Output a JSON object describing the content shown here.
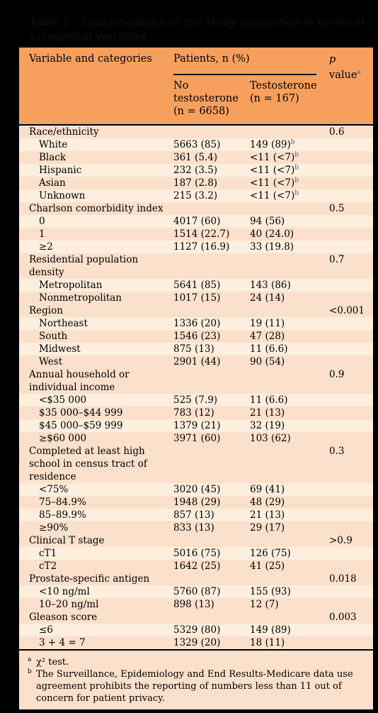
{
  "caption": "Table 2 – Characteristics of the study population in terms of categorical variables",
  "header": {
    "variable": "Variable and categories",
    "patients": "Patients, n (%)",
    "no_testosterone_1": "No",
    "no_testosterone_2": "testosterone",
    "no_testosterone_3": "(n = 6658)",
    "testosterone_1": "Testosterone",
    "testosterone_2": "(n = 167)",
    "p_1": "p",
    "p_2": "value",
    "p_mark": "a"
  },
  "rows": [
    {
      "label": "Race/ethnicity",
      "no": "",
      "yes": "",
      "p": "0.6",
      "sub": false,
      "sep": true,
      "lines": 1
    },
    {
      "label": "White",
      "no": "5663 (85)",
      "yes": "149 (89)",
      "mark": "b",
      "p": "",
      "sub": true,
      "lines": 1
    },
    {
      "label": "Black",
      "no": "361 (5.4)",
      "yes": "<11 (<7)",
      "mark": "b",
      "p": "",
      "sub": true,
      "lines": 1
    },
    {
      "label": "Hispanic",
      "no": "232 (3.5)",
      "yes": "<11 (<7)",
      "mark": "b",
      "p": "",
      "sub": true,
      "lines": 1
    },
    {
      "label": "Asian",
      "no": "187 (2.8)",
      "yes": "<11 (<7)",
      "mark": "b",
      "p": "",
      "sub": true,
      "lines": 1
    },
    {
      "label": "Unknown",
      "no": "215 (3.2)",
      "yes": "<11 (<7)",
      "mark": "b",
      "p": "",
      "sub": true,
      "lines": 1
    },
    {
      "label": "Charlson comorbidity index",
      "no": "",
      "yes": "",
      "p": "0.5",
      "sub": false,
      "lines": 1
    },
    {
      "label": "0",
      "no": "4017 (60)",
      "yes": "94 (56)",
      "p": "",
      "sub": true,
      "lines": 1
    },
    {
      "label": "1",
      "no": "1514 (22.7)",
      "yes": "40 (24.0)",
      "p": "",
      "sub": true,
      "lines": 1
    },
    {
      "label": "≥2",
      "no": "1127 (16.9)",
      "yes": "33 (19.8)",
      "p": "",
      "sub": true,
      "lines": 1
    },
    {
      "label": "Residential population density",
      "no": "",
      "yes": "",
      "p": "0.7",
      "sub": false,
      "lines": 2
    },
    {
      "label": "Metropolitan",
      "no": "5641 (85)",
      "yes": "143 (86)",
      "p": "",
      "sub": true,
      "lines": 1
    },
    {
      "label": "Nonmetropolitan",
      "no": "1017 (15)",
      "yes": "24 (14)",
      "p": "",
      "sub": true,
      "lines": 1
    },
    {
      "label": "Region",
      "no": "",
      "yes": "",
      "p": "<0.001",
      "sub": false,
      "lines": 1
    },
    {
      "label": "Northeast",
      "no": "1336 (20)",
      "yes": "19 (11)",
      "p": "",
      "sub": true,
      "lines": 1
    },
    {
      "label": "South",
      "no": "1546 (23)",
      "yes": "47 (28)",
      "p": "",
      "sub": true,
      "lines": 1
    },
    {
      "label": "Midwest",
      "no": "875 (13)",
      "yes": "11 (6.6)",
      "p": "",
      "sub": true,
      "lines": 1
    },
    {
      "label": "West",
      "no": "2901 (44)",
      "yes": "90 (54)",
      "p": "",
      "sub": true,
      "lines": 1
    },
    {
      "label": "Annual household or individual income",
      "no": "",
      "yes": "",
      "p": "0.9",
      "sub": false,
      "lines": 2
    },
    {
      "label": "<$35 000",
      "no": "525 (7.9)",
      "yes": "11 (6.6)",
      "p": "",
      "sub": true,
      "lines": 1
    },
    {
      "label": "$35 000–$44 999",
      "no": "783 (12)",
      "yes": "21 (13)",
      "p": "",
      "sub": true,
      "lines": 1
    },
    {
      "label": "$45 000–$59 999",
      "no": "1379 (21)",
      "yes": "32 (19)",
      "p": "",
      "sub": true,
      "lines": 1
    },
    {
      "label": "≥$60 000",
      "no": "3971 (60)",
      "yes": "103 (62)",
      "p": "",
      "sub": true,
      "lines": 1
    },
    {
      "label": "Completed at least high school in census tract of residence",
      "no": "",
      "yes": "",
      "p": "0.3",
      "sub": false,
      "lines": 3
    },
    {
      "label": "<75%",
      "no": "3020 (45)",
      "yes": "69 (41)",
      "p": "",
      "sub": true,
      "lines": 1
    },
    {
      "label": "75–84.9%",
      "no": "1948 (29)",
      "yes": "48 (29)",
      "p": "",
      "sub": true,
      "lines": 1
    },
    {
      "label": "85–89.9%",
      "no": "857 (13)",
      "yes": "21 (13)",
      "p": "",
      "sub": true,
      "lines": 1
    },
    {
      "label": "≥90%",
      "no": "833 (13)",
      "yes": "29 (17)",
      "p": "",
      "sub": true,
      "lines": 1
    },
    {
      "label": "Clinical T stage",
      "no": "",
      "yes": "",
      "p": ">0.9",
      "sub": false,
      "lines": 1
    },
    {
      "label": "cT1",
      "no": "5016 (75)",
      "yes": "126 (75)",
      "p": "",
      "sub": true,
      "lines": 1
    },
    {
      "label": "cT2",
      "no": "1642 (25)",
      "yes": "41 (25)",
      "p": "",
      "sub": true,
      "lines": 1
    },
    {
      "label": "Prostate-specific antigen",
      "no": "",
      "yes": "",
      "p": "0.018",
      "sub": false,
      "lines": 1
    },
    {
      "label": "<10 ng/ml",
      "no": "5760 (87)",
      "yes": "155 (93)",
      "p": "",
      "sub": true,
      "lines": 1
    },
    {
      "label": "10–20 ng/ml",
      "no": "898 (13)",
      "yes": "12 (7)",
      "p": "",
      "sub": true,
      "lines": 1
    },
    {
      "label": "Gleason score",
      "no": "",
      "yes": "",
      "p": "0.003",
      "sub": false,
      "lines": 1
    },
    {
      "label": "≤6",
      "no": "5329 (80)",
      "yes": "149 (89)",
      "p": "",
      "sub": true,
      "lines": 1
    },
    {
      "label": "3 + 4 = 7",
      "no": "1329 (20)",
      "yes": "18 (11)",
      "p": "",
      "sub": true,
      "lines": 1
    }
  ],
  "footnotes": [
    {
      "mark": "a",
      "text": "χ² test."
    },
    {
      "mark": "b",
      "text": "The Surveillance, Epidemiology and End Results-Medicare data use agreement prohibits the reporting of numbers less than 11 out of concern for patient privacy."
    }
  ]
}
